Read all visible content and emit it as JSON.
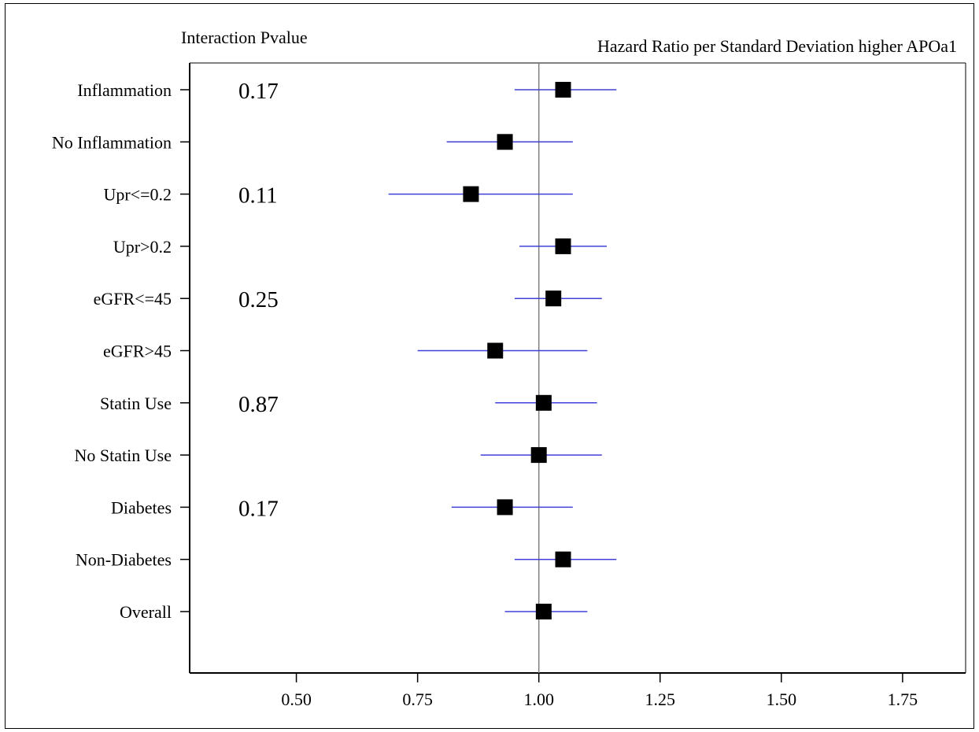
{
  "chart_data": {
    "type": "forest",
    "title": "Hazard Ratio per Standard Deviation higher APOa1",
    "pvalue_header": "Interaction Pvalue",
    "xlim": [
      0.28,
      1.88
    ],
    "xticks": [
      "0.50",
      "0.75",
      "1.00",
      "1.25",
      "1.50",
      "1.75"
    ],
    "reference_line": 1.0,
    "grid": false,
    "colors": {
      "ci_line": "#4040d8",
      "marker": "#000000",
      "reference_line": "#808080"
    },
    "rows": [
      {
        "label": "Inflammation",
        "hr": 1.05,
        "lower": 0.95,
        "upper": 1.16,
        "pvalue": "0.17"
      },
      {
        "label": "No Inflammation",
        "hr": 0.93,
        "lower": 0.81,
        "upper": 1.07,
        "pvalue": ""
      },
      {
        "label": "Upr<=0.2",
        "hr": 0.86,
        "lower": 0.69,
        "upper": 1.07,
        "pvalue": "0.11"
      },
      {
        "label": "Upr>0.2",
        "hr": 1.05,
        "lower": 0.96,
        "upper": 1.14,
        "pvalue": ""
      },
      {
        "label": "eGFR<=45",
        "hr": 1.03,
        "lower": 0.95,
        "upper": 1.13,
        "pvalue": "0.25"
      },
      {
        "label": "eGFR>45",
        "hr": 0.91,
        "lower": 0.75,
        "upper": 1.1,
        "pvalue": ""
      },
      {
        "label": "Statin Use",
        "hr": 1.01,
        "lower": 0.91,
        "upper": 1.12,
        "pvalue": "0.87"
      },
      {
        "label": "No Statin Use",
        "hr": 1.0,
        "lower": 0.88,
        "upper": 1.13,
        "pvalue": ""
      },
      {
        "label": "Diabetes",
        "hr": 0.93,
        "lower": 0.82,
        "upper": 1.07,
        "pvalue": "0.17"
      },
      {
        "label": "Non-Diabetes",
        "hr": 1.05,
        "lower": 0.95,
        "upper": 1.16,
        "pvalue": ""
      },
      {
        "label": "Overall",
        "hr": 1.01,
        "lower": 0.93,
        "upper": 1.1,
        "pvalue": ""
      }
    ]
  }
}
